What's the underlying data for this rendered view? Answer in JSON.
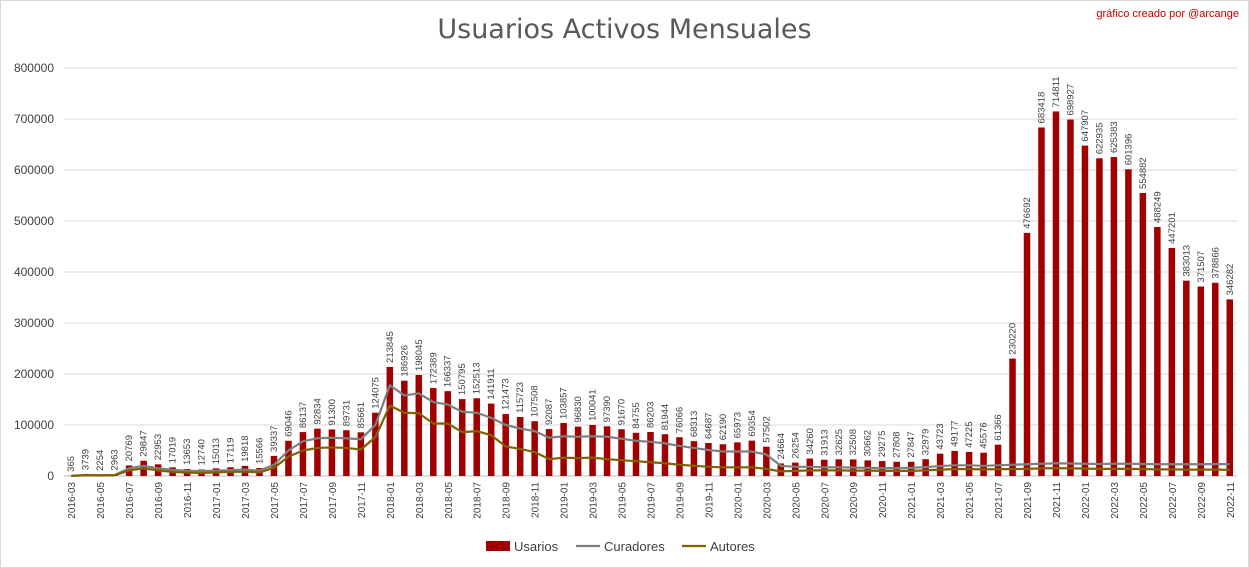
{
  "chart_data": {
    "type": "bar",
    "title": "Usuarios Activos Mensuales",
    "credit": "gráfico creado por @arcange",
    "ylim": [
      0,
      800000
    ],
    "yticks": [
      "0",
      "100000",
      "200000",
      "300000",
      "400000",
      "500000",
      "600000",
      "700000",
      "800000"
    ],
    "grid": true,
    "legend_position": "bottom",
    "colors": {
      "bar": "#a00000",
      "curadores": "#7f7f7f",
      "autores": "#806000"
    },
    "categories": [
      "2016-03",
      "2016-04",
      "2016-05",
      "2016-06",
      "2016-07",
      "2016-08",
      "2016-09",
      "2016-10",
      "2016-11",
      "2016-12",
      "2017-01",
      "2017-02",
      "2017-03",
      "2017-04",
      "2017-05",
      "2017-06",
      "2017-07",
      "2017-08",
      "2017-09",
      "2017-10",
      "2017-11",
      "2017-12",
      "2018-01",
      "2018-02",
      "2018-03",
      "2018-04",
      "2018-05",
      "2018-06",
      "2018-07",
      "2018-08",
      "2018-09",
      "2018-10",
      "2018-11",
      "2018-12",
      "2019-01",
      "2019-02",
      "2019-03",
      "2019-04",
      "2019-05",
      "2019-06",
      "2019-07",
      "2019-08",
      "2019-09",
      "2019-10",
      "2019-11",
      "2019-12",
      "2020-01",
      "2020-02",
      "2020-03",
      "2020-04",
      "2020-05",
      "2020-06",
      "2020-07",
      "2020-08",
      "2020-09",
      "2020-10",
      "2020-11",
      "2020-12",
      "2021-01",
      "2021-02",
      "2021-03",
      "2021-04",
      "2021-05",
      "2021-06",
      "2021-07",
      "2021-08",
      "2021-09",
      "2021-10",
      "2021-11",
      "2021-12",
      "2022-01",
      "2022-02",
      "2022-03",
      "2022-04",
      "2022-05",
      "2022-06",
      "2022-07",
      "2022-08",
      "2022-09",
      "2022-10",
      "2022-11"
    ],
    "x_tick_labels": [
      "2016-03",
      "2016-05",
      "2016-07",
      "2016-09",
      "2016-11",
      "2017-01",
      "2017-03",
      "2017-05",
      "2017-07",
      "2017-09",
      "2017-11",
      "2018-01",
      "2018-03",
      "2018-05",
      "2018-07",
      "2018-09",
      "2018-11",
      "2019-01",
      "2019-03",
      "2019-05",
      "2019-07",
      "2019-09",
      "2019-11",
      "2020-01",
      "2020-03",
      "2020-05",
      "2020-07",
      "2020-09",
      "2020-11",
      "2021-01",
      "2021-03",
      "2021-05",
      "2021-07",
      "2021-09",
      "2021-11",
      "2022-01",
      "2022-03",
      "2022-05",
      "2022-07",
      "2022-09",
      "2022-11"
    ],
    "series": [
      {
        "name": "Usarios",
        "kind": "bar",
        "values": [
          365,
          3739,
          2254,
          2963,
          20769,
          29847,
          22953,
          17019,
          13653,
          12740,
          15013,
          17119,
          19818,
          15566,
          39337,
          69046,
          86137,
          92834,
          91300,
          89731,
          85661,
          124075,
          213845,
          186926,
          198045,
          172389,
          166337,
          150795,
          152513,
          141911,
          121473,
          115723,
          107508,
          92087,
          103857,
          96830,
          100041,
          97390,
          91670,
          84755,
          86203,
          81944,
          76066,
          68313,
          64687,
          62190,
          65973,
          69354,
          57502,
          24664,
          26254,
          34260,
          31913,
          32625,
          32508,
          30662,
          29275,
          27808,
          27847,
          32979,
          43723,
          49177,
          47225,
          45576,
          61366,
          230220,
          476692,
          683418,
          714811,
          698927,
          647907,
          622935,
          625383,
          601396,
          554882,
          488249,
          447201,
          383013,
          371507,
          378866,
          346282
        ]
      },
      {
        "name": "Curadores",
        "kind": "line",
        "values": [
          400,
          2000,
          1500,
          2000,
          15000,
          20000,
          15000,
          12000,
          10000,
          9500,
          10500,
          11500,
          12500,
          10500,
          22000,
          50000,
          68000,
          74000,
          75000,
          74000,
          72000,
          100000,
          178000,
          158000,
          162000,
          145000,
          140000,
          126000,
          124000,
          114000,
          100000,
          93000,
          88000,
          75000,
          78000,
          77000,
          78000,
          77000,
          73000,
          69000,
          67000,
          64000,
          59000,
          55000,
          51000,
          48000,
          48000,
          48000,
          42000,
          20000,
          18000,
          18000,
          17000,
          17000,
          16500,
          16000,
          15500,
          15500,
          16000,
          17500,
          19500,
          21000,
          21000,
          20000,
          21000,
          22000,
          23000,
          24000,
          25000,
          24500,
          24000,
          23500,
          24000,
          24000,
          23500,
          23000,
          23000,
          23000,
          23000,
          23500,
          23000
        ]
      },
      {
        "name": "Autores",
        "kind": "line",
        "values": [
          300,
          1500,
          1000,
          1500,
          11000,
          15000,
          11000,
          8000,
          6500,
          6000,
          7000,
          8000,
          8500,
          7000,
          16000,
          38000,
          50000,
          55000,
          56000,
          55000,
          52000,
          76000,
          138000,
          124000,
          123000,
          103000,
          103000,
          86000,
          88000,
          80000,
          58000,
          53000,
          47000,
          33000,
          36000,
          35000,
          36000,
          33000,
          31000,
          29000,
          27000,
          25000,
          22000,
          20000,
          18000,
          17000,
          17000,
          17000,
          14000,
          9000,
          10000,
          11000,
          11000,
          11000,
          10500,
          10500,
          10000,
          10000,
          10000,
          11000,
          12500,
          13500,
          13500,
          13000,
          13500,
          13500,
          14000,
          15000,
          15500,
          15000,
          14500,
          14000,
          14000,
          14000,
          13500,
          13000,
          13000,
          12500,
          12500,
          12500,
          12000
        ]
      }
    ]
  }
}
